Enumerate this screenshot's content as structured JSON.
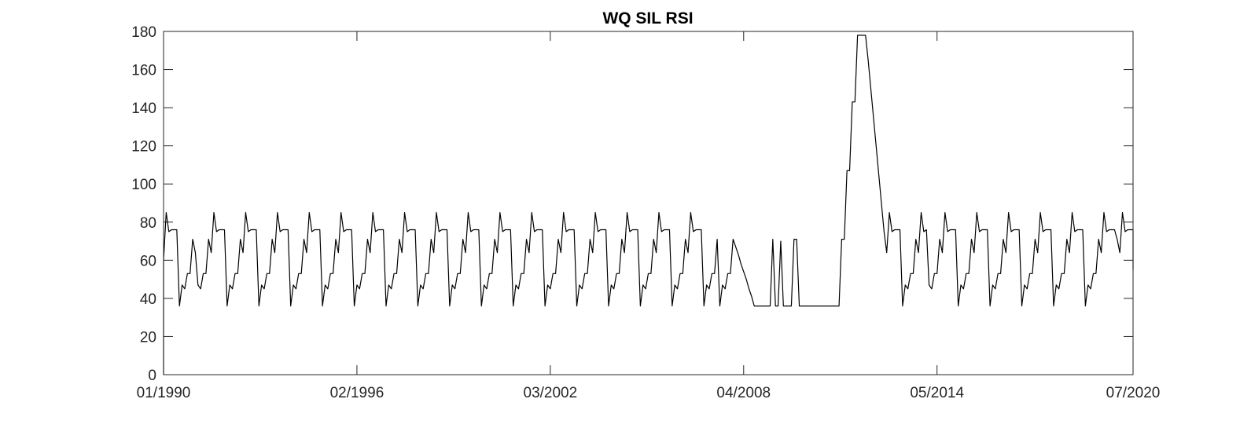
{
  "chart_data": {
    "type": "line",
    "title": "WQ SIL RSI",
    "xlabel": "",
    "ylabel": "",
    "xlim": [
      "1990-01",
      "2020-07"
    ],
    "ylim": [
      0,
      180
    ],
    "xticks": [
      "01/1990",
      "02/1996",
      "03/2002",
      "04/2008",
      "05/2014",
      "07/2020"
    ],
    "yticks": [
      0,
      20,
      40,
      60,
      80,
      100,
      120,
      140,
      160,
      180
    ],
    "grid": false,
    "legend": "none",
    "line_color": "#000000",
    "annual_cycle": {
      "years": "1990-2007, 2014-2020",
      "monthly_values": [
        36,
        47,
        45,
        53,
        53,
        71,
        64,
        85,
        75,
        76,
        76,
        76
      ]
    },
    "series": [
      {
        "x": [
          "1990-01",
          "1990-01",
          "1990-02",
          "1990-03",
          "1990-04",
          "1990-05",
          "1990-06",
          "1990-07",
          "1990-08",
          "1990-09",
          "1990-10",
          "1990-11",
          "1990-12",
          "1991-01"
        ],
        "values": [
          0,
          60,
          85,
          75,
          76,
          76,
          76,
          36,
          47,
          45,
          53,
          53,
          71,
          64
        ]
      },
      {
        "x": [
          "2007-07",
          "2007-08",
          "2007-09",
          "2007-10",
          "2007-11",
          "2007-12",
          "2008-01",
          "2008-02",
          "2008-03",
          "2008-04",
          "2008-05",
          "2008-06",
          "2008-07",
          "2008-08",
          "2008-09",
          "2008-10",
          "2008-11",
          "2008-12",
          "2009-01",
          "2009-02",
          "2009-03",
          "2009-04",
          "2009-05",
          "2009-06",
          "2009-07",
          "2009-08",
          "2009-09",
          "2009-10",
          "2009-11",
          "2009-12",
          "2010-01",
          "2010-02",
          "2010-03",
          "2010-04",
          "2010-05",
          "2010-06",
          "2010-07",
          "2010-08",
          "2010-09",
          "2010-10",
          "2010-11",
          "2010-12",
          "2011-01",
          "2011-02",
          "2011-03",
          "2011-04",
          "2011-05",
          "2011-06",
          "2011-07",
          "2011-08",
          "2011-09",
          "2011-10",
          "2011-11",
          "2011-12",
          "2012-01",
          "2012-02",
          "2012-03",
          "2012-04",
          "2012-05",
          "2012-06",
          "2012-07",
          "2012-08",
          "2012-09",
          "2012-10",
          "2012-11",
          "2012-12",
          "2013-01",
          "2013-02",
          "2013-03",
          "2013-04",
          "2013-05",
          "2013-06",
          "2013-07",
          "2013-08",
          "2013-09",
          "2013-10",
          "2013-11",
          "2013-12",
          "2014-01"
        ],
        "values": [
          36,
          47,
          45,
          53,
          53,
          71,
          67,
          63,
          58,
          54,
          50,
          45,
          41,
          36,
          36,
          36,
          36,
          36,
          36,
          36,
          71,
          36,
          36,
          70,
          36,
          36,
          36,
          36,
          71,
          71,
          36,
          36,
          36,
          36,
          36,
          36,
          36,
          36,
          36,
          36,
          36,
          36,
          36,
          36,
          36,
          36,
          71,
          71,
          107,
          107,
          143,
          143,
          178,
          178,
          178,
          178,
          165,
          150,
          135,
          120,
          105,
          90,
          75,
          64,
          85,
          75,
          76,
          76,
          76,
          36,
          47,
          45,
          53,
          53,
          71,
          64,
          85,
          75,
          76
        ]
      },
      {
        "x": [
          "2020-01",
          "2020-02",
          "2020-03",
          "2020-04",
          "2020-05",
          "2020-06",
          "2020-07",
          "2020-07"
        ],
        "values": [
          71,
          64,
          85,
          75,
          76,
          76,
          76,
          55
        ]
      }
    ]
  }
}
